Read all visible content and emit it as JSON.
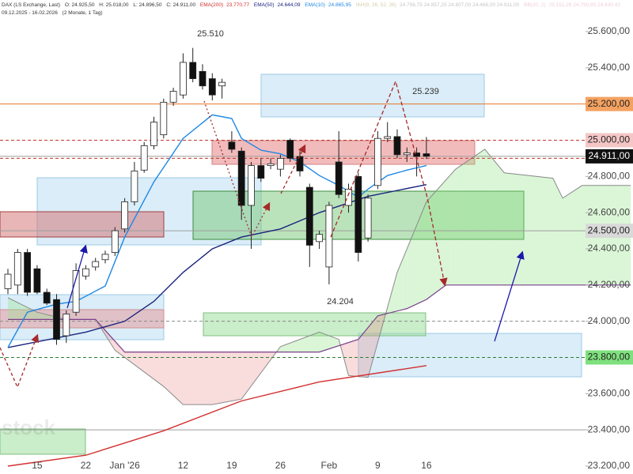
{
  "chart_data": {
    "type": "candlestick",
    "header": {
      "instrument": "DAX (LS Exchange, Last)",
      "ohlc": [
        "O: 24.925,50",
        "H: 25.018,00",
        "L: 24.896,50",
        "C: 24.911,00"
      ],
      "range": "09.12.2025 - 16.02.2026",
      "span": "(2 Monate, 1 Tag)",
      "bb_name": "BB(20, 2)",
      "bb_values": "25.151,28 24.790,85 24.430,42"
    },
    "categories": [
      null,
      null,
      null,
      "15",
      null,
      null,
      null,
      null,
      "22",
      null,
      null,
      null,
      "Jan '26",
      null,
      null,
      null,
      null,
      null,
      "12",
      null,
      null,
      null,
      null,
      "19",
      null,
      null,
      null,
      null,
      "26",
      null,
      null,
      null,
      null,
      "Feb",
      null,
      null,
      null,
      null,
      "9",
      null,
      null,
      null,
      null,
      "16"
    ],
    "open": [
      24180,
      24200,
      24380,
      24290,
      24160,
      24120,
      23920,
      24050,
      24250,
      24300,
      24340,
      24380,
      24510,
      24660,
      24835,
      24970,
      25030,
      25210,
      25250,
      25430,
      25380,
      25340,
      25300,
      24990,
      24940,
      24640,
      24860,
      24860,
      24840,
      25000,
      24910,
      24740,
      24440,
      24300,
      24880,
      24640,
      24800,
      24460,
      24750,
      25010,
      25020,
      24920,
      24930,
      24925.5
    ],
    "high": [
      24290,
      24400,
      24400,
      24310,
      24180,
      24150,
      24060,
      24320,
      24310,
      24350,
      24390,
      24520,
      24680,
      24880,
      24990,
      25130,
      25230,
      25290,
      25480,
      25510,
      25420,
      25370,
      25340,
      25050,
      24960,
      24880,
      24900,
      24900,
      24920,
      25010,
      24940,
      24760,
      24500,
      24660,
      25050,
      24760,
      24820,
      24700,
      25050,
      25100,
      25060,
      24960,
      24960,
      25018
    ],
    "low": [
      24150,
      24150,
      24140,
      24150,
      24090,
      23870,
      23880,
      24030,
      24230,
      24280,
      24320,
      24360,
      24490,
      24640,
      24820,
      24950,
      25010,
      25190,
      25230,
      25320,
      25280,
      25220,
      25230,
      24930,
      24560,
      24400,
      24770,
      24840,
      24800,
      24880,
      24800,
      24300,
      24400,
      24204,
      24680,
      24600,
      24330,
      24440,
      24730,
      24990,
      24900,
      24880,
      24800,
      24896.5
    ],
    "close": [
      24260,
      24380,
      24160,
      24160,
      24100,
      23900,
      24040,
      24280,
      24290,
      24330,
      24370,
      24500,
      24660,
      24830,
      24970,
      25100,
      25210,
      25270,
      25430,
      25340,
      25300,
      25250,
      25320,
      24950,
      24640,
      24860,
      24790,
      24870,
      24900,
      24900,
      24830,
      24420,
      24480,
      24640,
      24700,
      24730,
      24380,
      24680,
      25010,
      25020,
      24920,
      24930,
      24910,
      24911
    ],
    "up_color": "#ffffff",
    "down_color": "#111111",
    "overlays": [
      {
        "name": "EMA(200)",
        "value_text": "23.770,77",
        "color": "#d32f2f",
        "x": [
          0,
          8,
          16,
          24,
          32,
          43
        ],
        "values": [
          23200,
          23260,
          23395,
          23560,
          23665,
          23755
        ]
      },
      {
        "name": "EMA(50)",
        "value_text": "24.644,09",
        "color": "#1a237e",
        "x": [
          0,
          8,
          12,
          15,
          18,
          21,
          24,
          28,
          32,
          37,
          43
        ],
        "values": [
          23855,
          23940,
          24000,
          24110,
          24270,
          24400,
          24465,
          24510,
          24600,
          24690,
          24755
        ]
      },
      {
        "name": "EMA(10)",
        "value_text": "24.865,95",
        "color": "#1e88e5",
        "x": [
          0,
          2,
          5,
          7,
          10,
          12,
          15,
          18,
          21,
          23,
          24,
          26,
          28,
          30,
          32,
          34,
          36,
          37,
          39,
          41,
          43
        ],
        "values": [
          23855,
          24050,
          24095,
          24110,
          24195,
          24465,
          24770,
          25010,
          25140,
          25120,
          25010,
          24945,
          24925,
          24880,
          24805,
          24750,
          24685,
          24730,
          24805,
          24835,
          24860
        ]
      }
    ],
    "cloud": {
      "name": "IKH(9, 26, 52, 26)",
      "value_text": "24.756,75 24.857,25 24.807,00 24.468,00 24.911,00",
      "span_a": {
        "color": "#8a8a8a",
        "x": [
          0,
          3,
          6,
          9,
          11,
          16,
          18,
          21,
          24,
          28,
          32,
          34,
          35,
          37,
          40,
          43,
          46,
          49,
          51,
          56,
          57,
          59,
          64
        ],
        "values": [
          24130,
          24050,
          24010,
          24010,
          23840,
          23640,
          23540,
          23540,
          23570,
          23860,
          23940,
          23900,
          23700,
          23690,
          24270,
          24660,
          24840,
          24950,
          24820,
          24790,
          24680,
          24750,
          24750
        ]
      },
      "span_b": {
        "color": "#7b3f8c",
        "x": [
          0,
          9,
          12,
          28,
          32,
          36,
          38,
          41,
          43,
          45,
          64
        ],
        "values": [
          24010,
          24010,
          23830,
          23830,
          23830,
          23900,
          24030,
          24070,
          24120,
          24200,
          24200
        ]
      },
      "bull_fill": "rgba(150,230,140,0.35)",
      "bear_fill": "rgba(235,130,130,0.28)"
    },
    "ylim": [
      23200,
      25600
    ],
    "yticks": [
      {
        "value": 25600,
        "label": "25.600,00"
      },
      {
        "value": 25400,
        "label": "25.400,00"
      },
      {
        "value": 24800,
        "label": "24.800,00"
      },
      {
        "value": 24600,
        "label": "24.600,00"
      },
      {
        "value": 24400,
        "label": "24.400,00"
      },
      {
        "value": 24200,
        "label": "24.200,00"
      },
      {
        "value": 24000,
        "label": "24.000,00"
      },
      {
        "value": 23600,
        "label": "23.600,00"
      },
      {
        "value": 23400,
        "label": "23.400,00"
      },
      {
        "value": 23200,
        "label": "23.200,00"
      }
    ],
    "price_lines": [
      {
        "value": 25200,
        "color": "#e8742a",
        "dash": false,
        "label": "25.200,00",
        "bg": "#f4a261",
        "fg": "#222222"
      },
      {
        "value": 25000,
        "color": "#c0392b",
        "dash": true,
        "label": "25.000,00",
        "bg": "#f5c6c6",
        "fg": "#222222"
      },
      {
        "value": 24900,
        "color": "#c0392b",
        "dash": true
      },
      {
        "value": 24911,
        "color": "#9e9e9e",
        "dash": false,
        "label": "24.911,00",
        "bg": "#111111",
        "fg": "#ffffff"
      },
      {
        "value": 24500,
        "color": "#9e9e9e",
        "dash": false,
        "label": "24.500,00",
        "bg": "#d9d9d9",
        "fg": "#222222"
      },
      {
        "value": 24000,
        "color": "#8a8a8a",
        "dash": true
      },
      {
        "value": 23800,
        "color": "#2e7d32",
        "dash": true,
        "label": "23.800,00",
        "bg": "#7ee07e",
        "fg": "#222222"
      },
      {
        "value": 23400,
        "color": "#9e9e9e",
        "dash": false
      }
    ],
    "annotations": [
      "25.510",
      "25.239",
      "24.204"
    ],
    "watermark": "stock"
  }
}
